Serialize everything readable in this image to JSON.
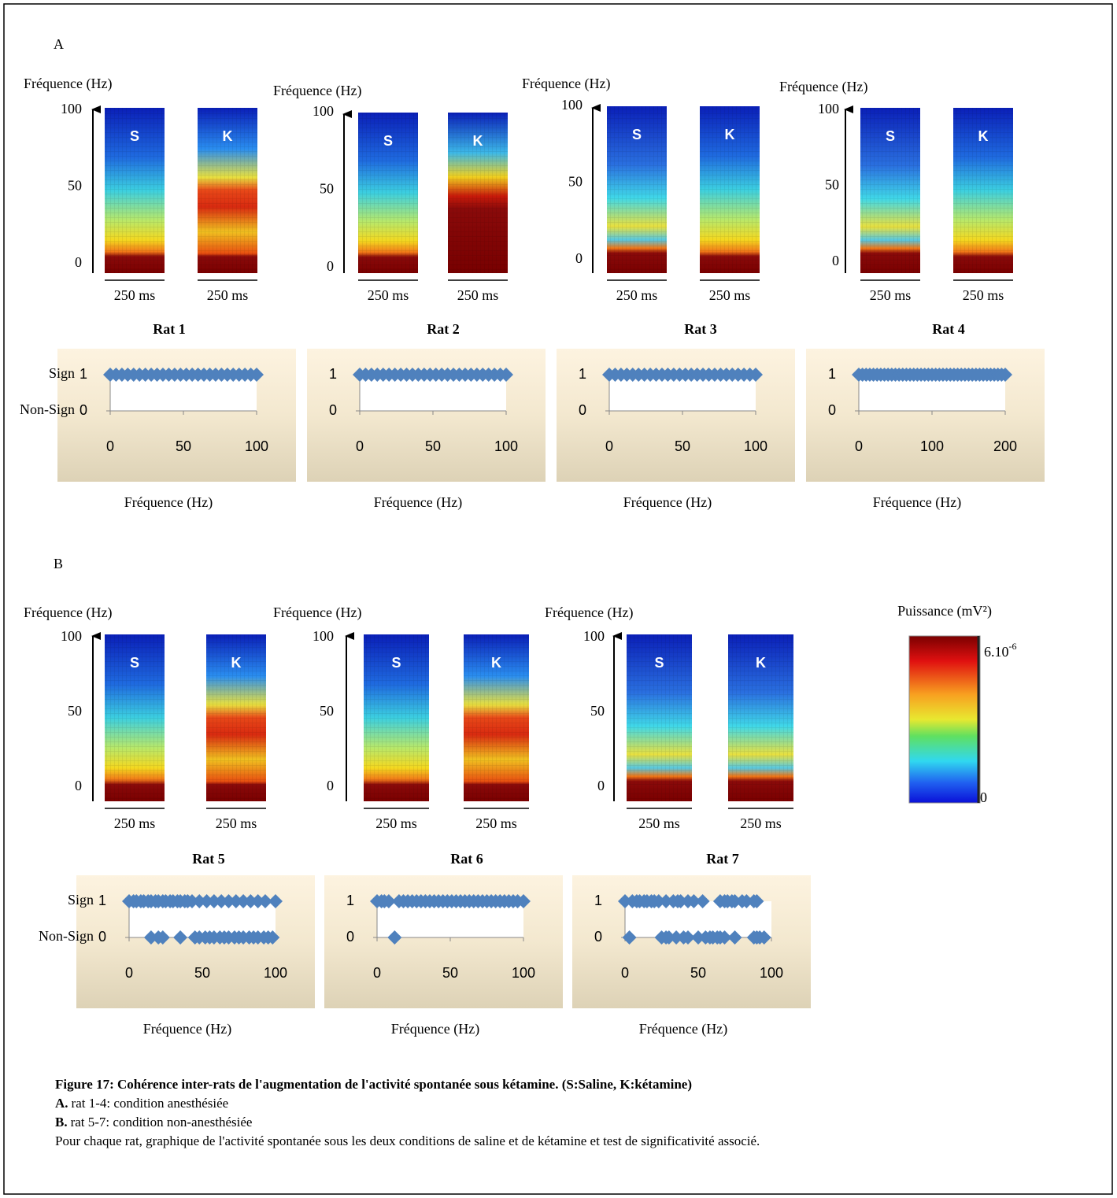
{
  "panels": [
    {
      "label": "A"
    },
    {
      "label": "B"
    }
  ],
  "spectrograms": [
    {
      "ylabel": "Fréquence (Hz)",
      "yticks": [
        0,
        50,
        100
      ],
      "conditions": [
        "S",
        "K"
      ],
      "scale_bars": [
        "250 ms",
        "250 ms"
      ]
    },
    {
      "ylabel": "Fréquence (Hz)",
      "yticks": [
        0,
        50,
        100
      ],
      "conditions": [
        "S",
        "K"
      ],
      "scale_bars": [
        "250 ms",
        "250 ms"
      ]
    },
    {
      "ylabel": "Fréquence (Hz)",
      "yticks": [
        0,
        50,
        100
      ],
      "conditions": [
        "S",
        "K"
      ],
      "scale_bars": [
        "250 ms",
        "250 ms"
      ]
    },
    {
      "ylabel": "Fréquence (Hz)",
      "yticks": [
        0,
        50,
        100
      ],
      "conditions": [
        "S",
        "K"
      ],
      "scale_bars": [
        "250 ms",
        "250 ms"
      ]
    },
    {
      "ylabel": "Fréquence (Hz)",
      "yticks": [
        0,
        50,
        100
      ],
      "conditions": [
        "S",
        "K"
      ],
      "scale_bars": [
        "250 ms",
        "250 ms"
      ]
    },
    {
      "ylabel": "Fréquence (Hz)",
      "yticks": [
        0,
        50,
        100
      ],
      "conditions": [
        "S",
        "K"
      ],
      "scale_bars": [
        "250 ms",
        "250 ms"
      ]
    },
    {
      "ylabel": "Fréquence (Hz)",
      "yticks": [
        0,
        50,
        100
      ],
      "conditions": [
        "S",
        "K"
      ],
      "scale_bars": [
        "250 ms",
        "250 ms"
      ]
    }
  ],
  "colorbar": {
    "title": "Puissance (mV²)",
    "max_label": "6.10",
    "max_label_exponent": "-6",
    "min_label": "0"
  },
  "chart_data": [
    {
      "type": "scatter",
      "title": "Rat 1",
      "xlabel": "Fréquence (Hz)",
      "color": "#4f81bd",
      "x": [
        0,
        4,
        8,
        12,
        16,
        20,
        24,
        28,
        32,
        36,
        40,
        44,
        48,
        52,
        56,
        60,
        64,
        68,
        72,
        76,
        80,
        84,
        88,
        92,
        96,
        100
      ],
      "values": [
        1,
        1,
        1,
        1,
        1,
        1,
        1,
        1,
        1,
        1,
        1,
        1,
        1,
        1,
        1,
        1,
        1,
        1,
        1,
        1,
        1,
        1,
        1,
        1,
        1,
        1
      ],
      "xlim": [
        0,
        100
      ],
      "xticks": [
        0,
        50,
        100
      ],
      "ylim": [
        0,
        1
      ],
      "yticks": [
        0,
        1
      ],
      "ytick_names": [
        "Non-Sign",
        "Sign"
      ]
    },
    {
      "type": "scatter",
      "title": "Rat 2",
      "xlabel": "Fréquence (Hz)",
      "color": "#4f81bd",
      "x": [
        0,
        4,
        8,
        12,
        16,
        20,
        24,
        28,
        32,
        36,
        40,
        44,
        48,
        52,
        56,
        60,
        64,
        68,
        72,
        76,
        80,
        84,
        88,
        92,
        96,
        100
      ],
      "values": [
        1,
        1,
        1,
        1,
        1,
        1,
        1,
        1,
        1,
        1,
        1,
        1,
        1,
        1,
        1,
        1,
        1,
        1,
        1,
        1,
        1,
        1,
        1,
        1,
        1,
        1
      ],
      "xlim": [
        0,
        100
      ],
      "xticks": [
        0,
        50,
        100
      ],
      "ylim": [
        0,
        1
      ],
      "yticks": [
        0,
        1
      ]
    },
    {
      "type": "scatter",
      "title": "Rat 3",
      "xlabel": "Fréquence (Hz)",
      "color": "#4f81bd",
      "x": [
        0,
        4,
        8,
        12,
        16,
        20,
        24,
        28,
        32,
        36,
        40,
        44,
        48,
        52,
        56,
        60,
        64,
        68,
        72,
        76,
        80,
        84,
        88,
        92,
        96,
        100
      ],
      "values": [
        1,
        1,
        1,
        1,
        1,
        1,
        1,
        1,
        1,
        1,
        1,
        1,
        1,
        1,
        1,
        1,
        1,
        1,
        1,
        1,
        1,
        1,
        1,
        1,
        1,
        1
      ],
      "xlim": [
        0,
        100
      ],
      "xticks": [
        0,
        50,
        100
      ],
      "ylim": [
        0,
        1
      ],
      "yticks": [
        0,
        1
      ]
    },
    {
      "type": "scatter",
      "title": "Rat 4",
      "xlabel": "Fréquence (Hz)",
      "color": "#4f81bd",
      "x": [
        0,
        5,
        10,
        15,
        20,
        25,
        30,
        35,
        40,
        45,
        50,
        55,
        60,
        65,
        70,
        75,
        80,
        85,
        90,
        95,
        100,
        105,
        110,
        115,
        120,
        125,
        130,
        135,
        140,
        145,
        150,
        155,
        160,
        165,
        170,
        175,
        180,
        185,
        190,
        195,
        200
      ],
      "values": [
        1,
        1,
        1,
        1,
        1,
        1,
        1,
        1,
        1,
        1,
        1,
        1,
        1,
        1,
        1,
        1,
        1,
        1,
        1,
        1,
        1,
        1,
        1,
        1,
        1,
        1,
        1,
        1,
        1,
        1,
        1,
        1,
        1,
        1,
        1,
        1,
        1,
        1,
        1,
        1,
        1
      ],
      "xlim": [
        0,
        200
      ],
      "xticks": [
        0,
        100,
        200
      ],
      "ylim": [
        0,
        1
      ],
      "yticks": [
        0,
        1
      ]
    },
    {
      "type": "scatter",
      "title": "Rat 5",
      "xlabel": "Fréquence (Hz)",
      "color": "#4f81bd",
      "x": [
        0,
        3,
        5,
        8,
        10,
        13,
        15,
        18,
        20,
        23,
        25,
        28,
        30,
        33,
        35,
        38,
        40,
        43,
        48,
        53,
        58,
        63,
        68,
        73,
        78,
        83,
        88,
        93,
        100,
        15,
        20,
        23,
        35,
        45,
        48,
        52,
        55,
        58,
        62,
        65,
        68,
        72,
        75,
        78,
        82,
        85,
        88,
        92,
        95,
        98
      ],
      "values": [
        1,
        1,
        1,
        1,
        1,
        1,
        1,
        1,
        1,
        1,
        1,
        1,
        1,
        1,
        1,
        1,
        1,
        1,
        1,
        1,
        1,
        1,
        1,
        1,
        1,
        1,
        1,
        1,
        1,
        0,
        0,
        0,
        0,
        0,
        0,
        0,
        0,
        0,
        0,
        0,
        0,
        0,
        0,
        0,
        0,
        0,
        0,
        0,
        0,
        0
      ],
      "xlim": [
        0,
        100
      ],
      "xticks": [
        0,
        50,
        100
      ],
      "ylim": [
        0,
        1
      ],
      "yticks": [
        0,
        1
      ],
      "ytick_names": [
        "Non-Sign",
        "Sign"
      ]
    },
    {
      "type": "scatter",
      "title": "Rat 6",
      "xlabel": "Fréquence (Hz)",
      "color": "#4f81bd",
      "x": [
        0,
        3,
        5,
        8,
        15,
        18,
        21,
        24,
        27,
        30,
        33,
        36,
        39,
        42,
        45,
        48,
        51,
        54,
        57,
        60,
        63,
        66,
        69,
        72,
        75,
        78,
        81,
        84,
        87,
        90,
        93,
        96,
        100,
        12
      ],
      "values": [
        1,
        1,
        1,
        1,
        1,
        1,
        1,
        1,
        1,
        1,
        1,
        1,
        1,
        1,
        1,
        1,
        1,
        1,
        1,
        1,
        1,
        1,
        1,
        1,
        1,
        1,
        1,
        1,
        1,
        1,
        1,
        1,
        1,
        0
      ],
      "xlim": [
        0,
        100
      ],
      "xticks": [
        0,
        50,
        100
      ],
      "ylim": [
        0,
        1
      ],
      "yticks": [
        0,
        1
      ]
    },
    {
      "type": "scatter",
      "title": "Rat 7",
      "xlabel": "Fréquence (Hz)",
      "color": "#4f81bd",
      "x": [
        0,
        5,
        8,
        10,
        13,
        15,
        18,
        20,
        23,
        28,
        33,
        36,
        38,
        43,
        47,
        53,
        65,
        68,
        70,
        73,
        75,
        80,
        83,
        88,
        90,
        3,
        25,
        28,
        30,
        35,
        40,
        43,
        50,
        55,
        58,
        60,
        63,
        65,
        68,
        75,
        88,
        90,
        92,
        95
      ],
      "values": [
        1,
        1,
        1,
        1,
        1,
        1,
        1,
        1,
        1,
        1,
        1,
        1,
        1,
        1,
        1,
        1,
        1,
        1,
        1,
        1,
        1,
        1,
        1,
        1,
        1,
        0,
        0,
        0,
        0,
        0,
        0,
        0,
        0,
        0,
        0,
        0,
        0,
        0,
        0,
        0,
        0,
        0,
        0,
        0
      ],
      "xlim": [
        0,
        100
      ],
      "xticks": [
        0,
        50,
        100
      ],
      "ylim": [
        0,
        1
      ],
      "yticks": [
        0,
        1
      ]
    }
  ],
  "caption": {
    "title": "Figure 17: Cohérence inter-rats de l'augmentation de l'activité spontanée sous kétamine. (S:Saline, K:kétamine)",
    "items": [
      {
        "label": "A.",
        "text": "rat 1-4: condition anesthésiée"
      },
      {
        "label": "B.",
        "text": "rat 5-7: condition non-anesthésiée"
      }
    ],
    "note": "Pour chaque rat, graphique de l'activité spontanée sous les deux conditions de saline et de kétamine et test de significativité associé."
  }
}
